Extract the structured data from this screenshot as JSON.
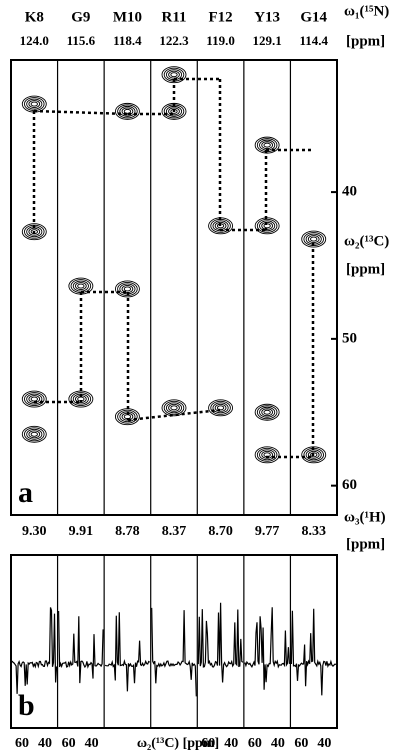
{
  "strips": [
    {
      "residue": "K8",
      "n15": "124.0",
      "h1": "9.30",
      "peaks": [
        34.0,
        42.7,
        54.1,
        56.5
      ]
    },
    {
      "residue": "G9",
      "n15": "115.6",
      "h1": "9.91",
      "peaks": [
        46.4,
        54.1
      ]
    },
    {
      "residue": "M10",
      "n15": "118.4",
      "h1": "8.78",
      "peaks": [
        34.5,
        46.6,
        55.3
      ]
    },
    {
      "residue": "R11",
      "n15": "122.3",
      "h1": "8.37",
      "peaks": [
        32.0,
        34.5,
        54.7
      ]
    },
    {
      "residue": "F12",
      "n15": "119.0",
      "h1": "8.70",
      "peaks": [
        42.3,
        54.7
      ]
    },
    {
      "residue": "Y13",
      "n15": "129.1",
      "h1": "9.77",
      "peaks": [
        36.8,
        42.3,
        55.0,
        57.9
      ]
    },
    {
      "residue": "G14",
      "n15": "114.4",
      "h1": "8.33",
      "peaks": [
        43.2,
        57.9
      ]
    }
  ],
  "n15_axis": {
    "label": "ω₁(¹⁵N)",
    "unit": "[ppm]"
  },
  "c13_axis": {
    "label": "ω₂(¹³C)",
    "unit": "[ppm]",
    "ylim": [
      31,
      62
    ],
    "yticks": [
      40,
      50,
      60
    ]
  },
  "h1_axis": {
    "label": "ω₃(¹H)",
    "unit": "[ppm]"
  },
  "panels": [
    "a",
    "b"
  ],
  "bottom_axis": {
    "ticks": [
      "60",
      "40"
    ],
    "label": "ω₂(¹³C) [ppm]"
  }
}
